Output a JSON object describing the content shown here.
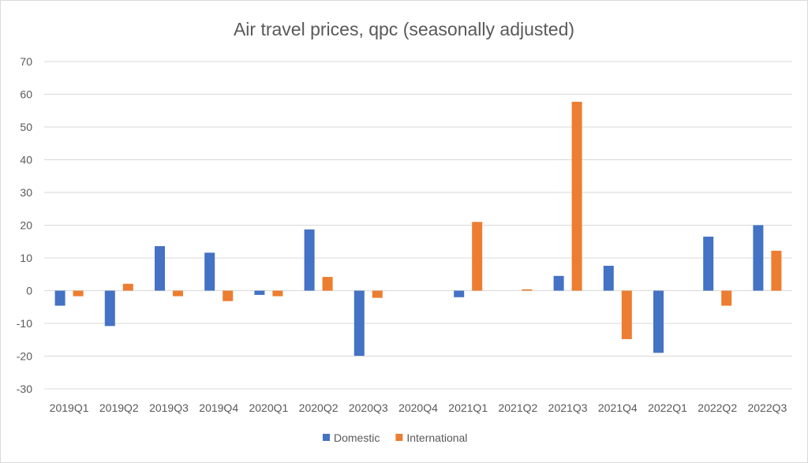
{
  "chart_data": {
    "type": "bar",
    "title": "Air travel prices, qpc (seasonally adjusted)",
    "xlabel": "",
    "ylabel": "",
    "ylim": [
      -30,
      70
    ],
    "yticks": [
      70,
      60,
      50,
      40,
      30,
      20,
      10,
      0,
      -10,
      -20,
      -30
    ],
    "grid": true,
    "legend_position": "bottom",
    "categories": [
      "2019Q1",
      "2019Q2",
      "2019Q3",
      "2019Q4",
      "2020Q1",
      "2020Q2",
      "2020Q3",
      "2020Q4",
      "2021Q1",
      "2021Q2",
      "2021Q3",
      "2021Q4",
      "2022Q1",
      "2022Q2",
      "2022Q3"
    ],
    "series": [
      {
        "name": "Domestic",
        "color": "#4472C4",
        "values": [
          -4.6,
          -10.8,
          13.6,
          11.6,
          -1.3,
          18.7,
          -19.9,
          0,
          -2.0,
          0,
          4.5,
          7.6,
          -19.0,
          16.5,
          20.0
        ]
      },
      {
        "name": "International",
        "color": "#ED7D31",
        "values": [
          -1.7,
          2.1,
          -1.7,
          -3.2,
          -1.7,
          4.2,
          -2.2,
          0,
          21.0,
          0.4,
          57.7,
          -14.8,
          0,
          -4.6,
          12.2
        ]
      }
    ]
  }
}
